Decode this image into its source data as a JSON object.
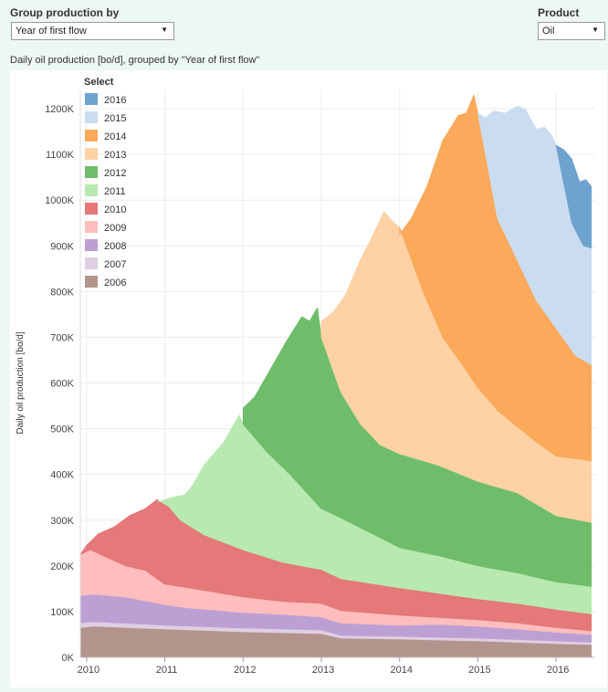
{
  "controls": {
    "group_label": "Group production by",
    "group_value": "Year of first flow",
    "product_label": "Product",
    "product_value": "Oil"
  },
  "subtitle": "Daily oil production [bo/d], grouped by \"Year of first flow\"",
  "chart_data": {
    "type": "area",
    "stacked": true,
    "ylabel": "Daily oil production [bo/d]",
    "xlabel": "",
    "ylim": [
      0,
      1240000
    ],
    "xlim": [
      2009.92,
      2016.5
    ],
    "y_ticks": [
      {
        "value": 0,
        "label": "0K"
      },
      {
        "value": 100000,
        "label": "100K"
      },
      {
        "value": 200000,
        "label": "200K"
      },
      {
        "value": 300000,
        "label": "300K"
      },
      {
        "value": 400000,
        "label": "400K"
      },
      {
        "value": 500000,
        "label": "500K"
      },
      {
        "value": 600000,
        "label": "600K"
      },
      {
        "value": 700000,
        "label": "700K"
      },
      {
        "value": 800000,
        "label": "800K"
      },
      {
        "value": 900000,
        "label": "900K"
      },
      {
        "value": 1000000,
        "label": "1000K"
      },
      {
        "value": 1100000,
        "label": "1100K"
      },
      {
        "value": 1200000,
        "label": "1200K"
      }
    ],
    "x_ticks": [
      {
        "value": 2010,
        "label": "2010"
      },
      {
        "value": 2011,
        "label": "2011"
      },
      {
        "value": 2012,
        "label": "2012"
      },
      {
        "value": 2013,
        "label": "2013"
      },
      {
        "value": 2014,
        "label": "2014"
      },
      {
        "value": 2015,
        "label": "2015"
      },
      {
        "value": 2016,
        "label": "2016"
      }
    ],
    "grid": true,
    "legend": {
      "title": "Select",
      "position": "top-left"
    },
    "series": [
      {
        "name": "2006",
        "color": "#b3948c",
        "top": [
          [
            2009.92,
            65000
          ],
          [
            2010.1,
            68000
          ],
          [
            2011.0,
            62000
          ],
          [
            2012.0,
            56000
          ],
          [
            2013.0,
            52000
          ],
          [
            2013.25,
            42000
          ],
          [
            2014.0,
            40000
          ],
          [
            2015.0,
            36000
          ],
          [
            2016.0,
            30000
          ],
          [
            2016.45,
            28000
          ]
        ]
      },
      {
        "name": "2007",
        "color": "#dfcfe3",
        "top": [
          [
            2009.92,
            75000
          ],
          [
            2010.1,
            78000
          ],
          [
            2011.0,
            70000
          ],
          [
            2012.0,
            64000
          ],
          [
            2013.0,
            60000
          ],
          [
            2013.25,
            48000
          ],
          [
            2014.0,
            46000
          ],
          [
            2015.0,
            42000
          ],
          [
            2016.0,
            36000
          ],
          [
            2016.45,
            33000
          ]
        ]
      },
      {
        "name": "2008",
        "color": "#bca0d4",
        "top": [
          [
            2009.92,
            135000
          ],
          [
            2010.1,
            138000
          ],
          [
            2010.5,
            132000
          ],
          [
            2011.0,
            115000
          ],
          [
            2011.3,
            108000
          ],
          [
            2011.6,
            104000
          ],
          [
            2012.0,
            98000
          ],
          [
            2012.5,
            94000
          ],
          [
            2013.0,
            88000
          ],
          [
            2013.25,
            75000
          ],
          [
            2014.0,
            70000
          ],
          [
            2014.5,
            72000
          ],
          [
            2015.0,
            68000
          ],
          [
            2015.5,
            62000
          ],
          [
            2016.0,
            55000
          ],
          [
            2016.45,
            50000
          ]
        ]
      },
      {
        "name": "2009",
        "color": "#ffbdbd",
        "top": [
          [
            2009.92,
            225000
          ],
          [
            2010.05,
            235000
          ],
          [
            2010.3,
            215000
          ],
          [
            2010.5,
            200000
          ],
          [
            2010.75,
            190000
          ],
          [
            2011.0,
            160000
          ],
          [
            2011.3,
            152000
          ],
          [
            2012.0,
            132000
          ],
          [
            2012.5,
            122000
          ],
          [
            2013.0,
            118000
          ],
          [
            2013.25,
            102000
          ],
          [
            2014.0,
            92000
          ],
          [
            2015.0,
            82000
          ],
          [
            2015.5,
            75000
          ],
          [
            2016.0,
            65000
          ],
          [
            2016.45,
            58000
          ]
        ]
      },
      {
        "name": "2010",
        "color": "#e57878",
        "top": [
          [
            2009.92,
            225000
          ],
          [
            2010.0,
            245000
          ],
          [
            2010.15,
            270000
          ],
          [
            2010.35,
            285000
          ],
          [
            2010.55,
            310000
          ],
          [
            2010.75,
            325000
          ],
          [
            2010.9,
            345000
          ],
          [
            2011.05,
            330000
          ],
          [
            2011.2,
            300000
          ],
          [
            2011.5,
            268000
          ],
          [
            2012.0,
            235000
          ],
          [
            2012.5,
            208000
          ],
          [
            2013.0,
            192000
          ],
          [
            2013.25,
            172000
          ],
          [
            2014.0,
            152000
          ],
          [
            2014.5,
            140000
          ],
          [
            2015.0,
            128000
          ],
          [
            2015.5,
            118000
          ],
          [
            2016.0,
            105000
          ],
          [
            2016.45,
            95000
          ]
        ]
      },
      {
        "name": "2011",
        "color": "#b8e9b0",
        "top": [
          [
            2010.92,
            340000
          ],
          [
            2011.1,
            350000
          ],
          [
            2011.25,
            355000
          ],
          [
            2011.35,
            375000
          ],
          [
            2011.5,
            420000
          ],
          [
            2011.75,
            470000
          ],
          [
            2011.95,
            530000
          ],
          [
            2012.0,
            510000
          ],
          [
            2012.3,
            450000
          ],
          [
            2012.6,
            400000
          ],
          [
            2013.0,
            325000
          ],
          [
            2013.25,
            305000
          ],
          [
            2014.0,
            240000
          ],
          [
            2014.5,
            222000
          ],
          [
            2015.0,
            200000
          ],
          [
            2015.5,
            185000
          ],
          [
            2016.0,
            165000
          ],
          [
            2016.45,
            155000
          ]
        ]
      },
      {
        "name": "2012",
        "color": "#6fbd6a",
        "top": [
          [
            2012.0,
            545000
          ],
          [
            2012.15,
            570000
          ],
          [
            2012.35,
            630000
          ],
          [
            2012.55,
            690000
          ],
          [
            2012.75,
            745000
          ],
          [
            2012.85,
            735000
          ],
          [
            2012.95,
            765000
          ],
          [
            2013.0,
            700000
          ],
          [
            2013.25,
            580000
          ],
          [
            2013.5,
            510000
          ],
          [
            2013.75,
            465000
          ],
          [
            2014.0,
            445000
          ],
          [
            2014.5,
            420000
          ],
          [
            2015.0,
            385000
          ],
          [
            2015.5,
            360000
          ],
          [
            2016.0,
            310000
          ],
          [
            2016.45,
            295000
          ]
        ]
      },
      {
        "name": "2013",
        "color": "#ffd2a6",
        "top": [
          [
            2013.0,
            735000
          ],
          [
            2013.15,
            755000
          ],
          [
            2013.3,
            790000
          ],
          [
            2013.5,
            870000
          ],
          [
            2013.65,
            920000
          ],
          [
            2013.8,
            975000
          ],
          [
            2013.9,
            955000
          ],
          [
            2014.0,
            940000
          ],
          [
            2014.3,
            800000
          ],
          [
            2014.55,
            700000
          ],
          [
            2014.8,
            640000
          ],
          [
            2015.0,
            590000
          ],
          [
            2015.25,
            540000
          ],
          [
            2015.5,
            505000
          ],
          [
            2015.75,
            470000
          ],
          [
            2016.0,
            440000
          ],
          [
            2016.45,
            430000
          ]
        ]
      },
      {
        "name": "2014",
        "color": "#fba95a",
        "top": [
          [
            2014.0,
            925000
          ],
          [
            2014.15,
            960000
          ],
          [
            2014.35,
            1030000
          ],
          [
            2014.55,
            1130000
          ],
          [
            2014.75,
            1185000
          ],
          [
            2014.85,
            1190000
          ],
          [
            2014.95,
            1230000
          ],
          [
            2015.0,
            1190000
          ],
          [
            2015.25,
            960000
          ],
          [
            2015.5,
            870000
          ],
          [
            2015.75,
            780000
          ],
          [
            2016.0,
            720000
          ],
          [
            2016.25,
            660000
          ],
          [
            2016.45,
            640000
          ]
        ]
      },
      {
        "name": "2015",
        "color": "#cadcf0",
        "top": [
          [
            2015.0,
            1190000
          ],
          [
            2015.1,
            1180000
          ],
          [
            2015.2,
            1195000
          ],
          [
            2015.35,
            1190000
          ],
          [
            2015.5,
            1205000
          ],
          [
            2015.6,
            1200000
          ],
          [
            2015.75,
            1155000
          ],
          [
            2015.85,
            1160000
          ],
          [
            2015.95,
            1140000
          ],
          [
            2016.0,
            1120000
          ],
          [
            2016.2,
            950000
          ],
          [
            2016.35,
            900000
          ],
          [
            2016.45,
            895000
          ]
        ]
      },
      {
        "name": "2016",
        "color": "#6fa3cf",
        "top": [
          [
            2016.0,
            1120000
          ],
          [
            2016.1,
            1110000
          ],
          [
            2016.2,
            1090000
          ],
          [
            2016.3,
            1040000
          ],
          [
            2016.38,
            1045000
          ],
          [
            2016.45,
            1030000
          ]
        ]
      }
    ]
  }
}
